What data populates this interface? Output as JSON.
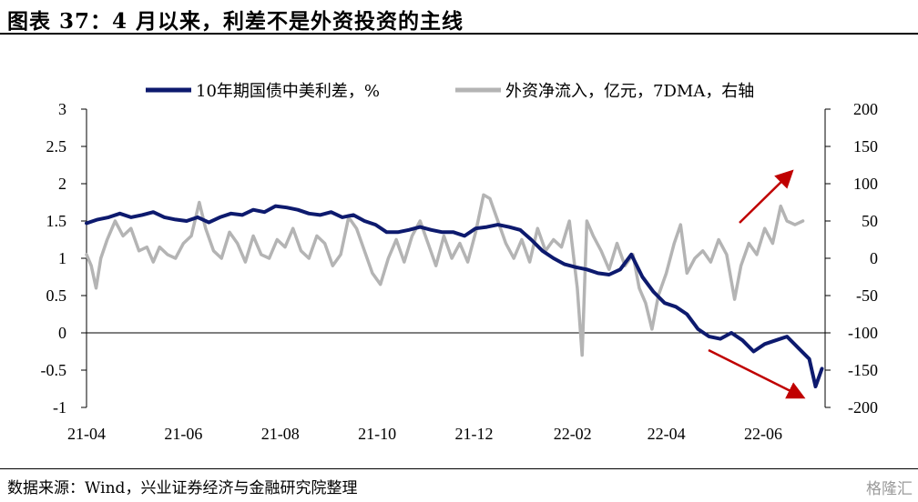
{
  "title": "图表 37：4 月以来，利差不是外资投资的主线",
  "source": "数据来源：Wind，兴业证券经济与金融研究院整理",
  "watermark": "格隆汇",
  "colors": {
    "spread": "#0d1a6e",
    "flow": "#b4b4b4",
    "arrow": "#c00000"
  },
  "chart_data": {
    "type": "line",
    "legend_position": "top",
    "x_tick_labels": [
      "21-04",
      "21-06",
      "21-08",
      "21-10",
      "21-12",
      "22-02",
      "22-04",
      "22-06"
    ],
    "y_left": {
      "ticks": [
        "3",
        "2.5",
        "2",
        "1.5",
        "1",
        "0.5",
        "0",
        "-0.5",
        "-1"
      ],
      "min": -1,
      "max": 3
    },
    "y_right": {
      "ticks": [
        "200",
        "150",
        "100",
        "50",
        "0",
        "-50",
        "-100",
        "-150",
        "-200"
      ],
      "min": -200,
      "max": 200
    },
    "series": [
      {
        "name": "10年期国债中美利差，%",
        "axis": "left",
        "points": [
          [
            "2021-04-01",
            1.47
          ],
          [
            "2021-04-08",
            1.52
          ],
          [
            "2021-04-15",
            1.55
          ],
          [
            "2021-04-22",
            1.6
          ],
          [
            "2021-04-29",
            1.55
          ],
          [
            "2021-05-06",
            1.58
          ],
          [
            "2021-05-13",
            1.62
          ],
          [
            "2021-05-20",
            1.55
          ],
          [
            "2021-05-27",
            1.52
          ],
          [
            "2021-06-03",
            1.5
          ],
          [
            "2021-06-10",
            1.55
          ],
          [
            "2021-06-17",
            1.48
          ],
          [
            "2021-06-24",
            1.55
          ],
          [
            "2021-07-01",
            1.6
          ],
          [
            "2021-07-08",
            1.58
          ],
          [
            "2021-07-15",
            1.65
          ],
          [
            "2021-07-22",
            1.62
          ],
          [
            "2021-07-29",
            1.7
          ],
          [
            "2021-08-05",
            1.68
          ],
          [
            "2021-08-12",
            1.65
          ],
          [
            "2021-08-19",
            1.6
          ],
          [
            "2021-08-26",
            1.58
          ],
          [
            "2021-09-02",
            1.62
          ],
          [
            "2021-09-09",
            1.55
          ],
          [
            "2021-09-16",
            1.58
          ],
          [
            "2021-09-23",
            1.5
          ],
          [
            "2021-09-30",
            1.45
          ],
          [
            "2021-10-07",
            1.35
          ],
          [
            "2021-10-14",
            1.35
          ],
          [
            "2021-10-21",
            1.38
          ],
          [
            "2021-10-28",
            1.42
          ],
          [
            "2021-11-04",
            1.38
          ],
          [
            "2021-11-11",
            1.35
          ],
          [
            "2021-11-18",
            1.35
          ],
          [
            "2021-11-25",
            1.3
          ],
          [
            "2021-12-02",
            1.4
          ],
          [
            "2021-12-09",
            1.42
          ],
          [
            "2021-12-16",
            1.45
          ],
          [
            "2021-12-23",
            1.42
          ],
          [
            "2021-12-30",
            1.38
          ],
          [
            "2022-01-06",
            1.25
          ],
          [
            "2022-01-13",
            1.1
          ],
          [
            "2022-01-20",
            1.0
          ],
          [
            "2022-01-27",
            0.92
          ],
          [
            "2022-02-03",
            0.88
          ],
          [
            "2022-02-10",
            0.85
          ],
          [
            "2022-02-17",
            0.8
          ],
          [
            "2022-02-24",
            0.78
          ],
          [
            "2022-03-03",
            0.85
          ],
          [
            "2022-03-10",
            1.05
          ],
          [
            "2022-03-17",
            0.75
          ],
          [
            "2022-03-24",
            0.55
          ],
          [
            "2022-03-31",
            0.4
          ],
          [
            "2022-04-07",
            0.35
          ],
          [
            "2022-04-14",
            0.25
          ],
          [
            "2022-04-21",
            0.05
          ],
          [
            "2022-04-28",
            -0.05
          ],
          [
            "2022-05-05",
            -0.08
          ],
          [
            "2022-05-12",
            0.0
          ],
          [
            "2022-05-19",
            -0.1
          ],
          [
            "2022-05-26",
            -0.25
          ],
          [
            "2022-06-02",
            -0.15
          ],
          [
            "2022-06-09",
            -0.1
          ],
          [
            "2022-06-16",
            -0.05
          ],
          [
            "2022-06-23",
            -0.2
          ],
          [
            "2022-06-30",
            -0.35
          ],
          [
            "2022-07-04",
            -0.72
          ],
          [
            "2022-07-08",
            -0.48
          ]
        ]
      },
      {
        "name": "外资净流入，亿元，7DMA，右轴",
        "axis": "right",
        "points": [
          [
            "2021-04-01",
            5
          ],
          [
            "2021-04-04",
            -10
          ],
          [
            "2021-04-07",
            -40
          ],
          [
            "2021-04-10",
            0
          ],
          [
            "2021-04-14",
            25
          ],
          [
            "2021-04-19",
            50
          ],
          [
            "2021-04-24",
            30
          ],
          [
            "2021-04-29",
            40
          ],
          [
            "2021-05-04",
            10
          ],
          [
            "2021-05-09",
            15
          ],
          [
            "2021-05-13",
            -5
          ],
          [
            "2021-05-17",
            15
          ],
          [
            "2021-05-22",
            5
          ],
          [
            "2021-05-27",
            0
          ],
          [
            "2021-06-01",
            20
          ],
          [
            "2021-06-06",
            30
          ],
          [
            "2021-06-11",
            75
          ],
          [
            "2021-06-15",
            40
          ],
          [
            "2021-06-20",
            10
          ],
          [
            "2021-06-25",
            0
          ],
          [
            "2021-06-30",
            35
          ],
          [
            "2021-07-05",
            20
          ],
          [
            "2021-07-10",
            -5
          ],
          [
            "2021-07-15",
            30
          ],
          [
            "2021-07-20",
            5
          ],
          [
            "2021-07-25",
            0
          ],
          [
            "2021-07-30",
            25
          ],
          [
            "2021-08-04",
            15
          ],
          [
            "2021-08-09",
            40
          ],
          [
            "2021-08-14",
            10
          ],
          [
            "2021-08-19",
            0
          ],
          [
            "2021-08-24",
            30
          ],
          [
            "2021-08-29",
            20
          ],
          [
            "2021-09-03",
            -10
          ],
          [
            "2021-09-08",
            5
          ],
          [
            "2021-09-13",
            55
          ],
          [
            "2021-09-18",
            40
          ],
          [
            "2021-09-23",
            10
          ],
          [
            "2021-09-28",
            -20
          ],
          [
            "2021-10-03",
            -35
          ],
          [
            "2021-10-08",
            0
          ],
          [
            "2021-10-13",
            25
          ],
          [
            "2021-10-18",
            -5
          ],
          [
            "2021-10-23",
            30
          ],
          [
            "2021-10-28",
            50
          ],
          [
            "2021-11-02",
            20
          ],
          [
            "2021-11-07",
            -10
          ],
          [
            "2021-11-12",
            30
          ],
          [
            "2021-11-17",
            0
          ],
          [
            "2021-11-22",
            20
          ],
          [
            "2021-11-27",
            -5
          ],
          [
            "2021-12-02",
            35
          ],
          [
            "2021-12-07",
            85
          ],
          [
            "2021-12-11",
            80
          ],
          [
            "2021-12-16",
            50
          ],
          [
            "2021-12-21",
            20
          ],
          [
            "2021-12-26",
            0
          ],
          [
            "2021-12-31",
            25
          ],
          [
            "2022-01-05",
            -5
          ],
          [
            "2022-01-10",
            40
          ],
          [
            "2022-01-15",
            10
          ],
          [
            "2022-01-20",
            25
          ],
          [
            "2022-01-25",
            15
          ],
          [
            "2022-01-30",
            50
          ],
          [
            "2022-02-04",
            -40
          ],
          [
            "2022-02-07",
            -130
          ],
          [
            "2022-02-10",
            50
          ],
          [
            "2022-02-14",
            30
          ],
          [
            "2022-02-19",
            10
          ],
          [
            "2022-02-24",
            -15
          ],
          [
            "2022-03-01",
            20
          ],
          [
            "2022-03-06",
            -10
          ],
          [
            "2022-03-11",
            5
          ],
          [
            "2022-03-15",
            -40
          ],
          [
            "2022-03-19",
            -60
          ],
          [
            "2022-03-23",
            -95
          ],
          [
            "2022-03-27",
            -50
          ],
          [
            "2022-04-01",
            -20
          ],
          [
            "2022-04-06",
            20
          ],
          [
            "2022-04-10",
            45
          ],
          [
            "2022-04-14",
            -20
          ],
          [
            "2022-04-19",
            0
          ],
          [
            "2022-04-24",
            10
          ],
          [
            "2022-04-29",
            -5
          ],
          [
            "2022-05-04",
            25
          ],
          [
            "2022-05-09",
            5
          ],
          [
            "2022-05-14",
            -55
          ],
          [
            "2022-05-18",
            -10
          ],
          [
            "2022-05-23",
            20
          ],
          [
            "2022-05-28",
            5
          ],
          [
            "2022-06-02",
            40
          ],
          [
            "2022-06-07",
            20
          ],
          [
            "2022-06-12",
            70
          ],
          [
            "2022-06-16",
            50
          ],
          [
            "2022-06-21",
            45
          ],
          [
            "2022-06-26",
            50
          ]
        ]
      }
    ],
    "annotations": [
      {
        "type": "arrow",
        "direction": "up-right"
      },
      {
        "type": "arrow",
        "direction": "down-right"
      }
    ]
  }
}
